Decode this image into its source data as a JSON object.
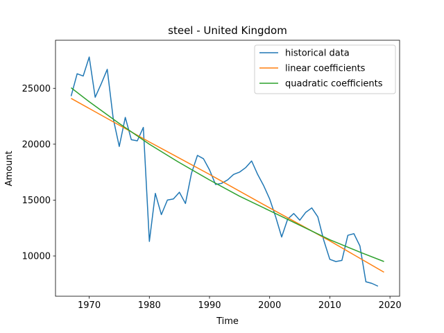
{
  "chart_data": {
    "type": "line",
    "title": "steel - United Kingdom",
    "xlabel": "Time",
    "ylabel": "Amount",
    "xlim": [
      1964.4,
      2021.6
    ],
    "ylim": [
      6400,
      29300
    ],
    "xticks": [
      1970,
      1980,
      1990,
      2000,
      2010,
      2020
    ],
    "yticks": [
      10000,
      15000,
      20000,
      25000
    ],
    "grid": false,
    "legend_position": "upper right",
    "series": [
      {
        "name": "historical data",
        "color": "#1f77b4",
        "x": [
          1967,
          1968,
          1969,
          1970,
          1971,
          1972,
          1973,
          1974,
          1975,
          1976,
          1977,
          1978,
          1979,
          1980,
          1981,
          1982,
          1983,
          1984,
          1985,
          1986,
          1987,
          1988,
          1989,
          1990,
          1991,
          1992,
          1993,
          1994,
          1995,
          1996,
          1997,
          1998,
          1999,
          2000,
          2001,
          2002,
          2003,
          2004,
          2005,
          2006,
          2007,
          2008,
          2009,
          2010,
          2011,
          2012,
          2013,
          2014,
          2015,
          2016,
          2017,
          2018
        ],
        "y": [
          24300,
          26300,
          26100,
          27800,
          24200,
          25400,
          26700,
          22300,
          19800,
          22400,
          20400,
          20300,
          21500,
          11300,
          15600,
          13700,
          15000,
          15100,
          15700,
          14700,
          17400,
          19000,
          18700,
          17700,
          16400,
          16500,
          16800,
          17300,
          17500,
          17900,
          18500,
          17300,
          16300,
          15100,
          13500,
          11700,
          13300,
          13800,
          13200,
          13900,
          14300,
          13500,
          11400,
          9700,
          9500,
          9600,
          11850,
          12000,
          10900,
          7700,
          7550,
          7300
        ]
      },
      {
        "name": "linear coefficients",
        "color": "#ff7f0e",
        "x": [
          1967,
          1980,
          1990,
          2000,
          2010,
          2019
        ],
        "y": [
          24100,
          20200,
          17300,
          14300,
          11350,
          8550
        ]
      },
      {
        "name": "quadratic coefficients",
        "color": "#2ca02c",
        "x": [
          1967,
          1970,
          1975,
          1980,
          1985,
          1990,
          1995,
          2000,
          2005,
          2010,
          2015,
          2019
        ],
        "y": [
          25050,
          23800,
          21850,
          20000,
          18350,
          16800,
          15350,
          14050,
          12750,
          11450,
          10350,
          9500
        ]
      }
    ]
  }
}
